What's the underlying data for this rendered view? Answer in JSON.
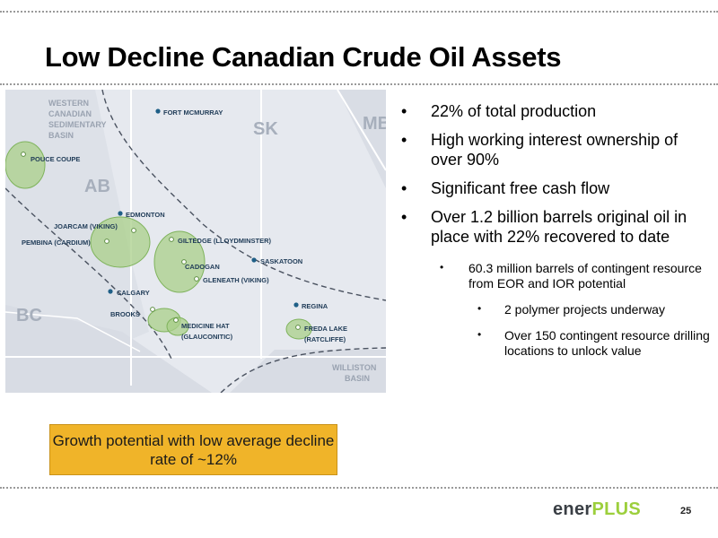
{
  "slide": {
    "title": "Low Decline Canadian Crude Oil Assets",
    "page_number": "25"
  },
  "map": {
    "basin_label": [
      "WESTERN",
      "CANADIAN",
      "SEDIMENTARY",
      "BASIN"
    ],
    "provinces": {
      "ab": "AB",
      "sk": "SK",
      "mb": "MB",
      "bc": "BC"
    },
    "cities": {
      "fort_mcmurray": "FORT MCMURRAY",
      "edmonton": "EDMONTON",
      "saskatoon": "SASKATOON",
      "calgary": "CALGARY",
      "regina": "REGINA"
    },
    "assets": {
      "pouce_coupe": "POUCE COUPE",
      "joarcam": "JOARCAM (VIKING)",
      "pembina": "PEMBINA (CARDIUM)",
      "giltedge": "GILTEDGE (LLOYDMINSTER)",
      "cadogan": "CADOGAN",
      "gleneath": "GLENEATH (VIKING)",
      "brooks": "BROOKS",
      "medicine_hat_1": "MEDICINE HAT",
      "medicine_hat_2": "(GLAUCONITIC)",
      "freda_lake_1": "FREDA LAKE",
      "freda_lake_2": "(RATCLIFFE)"
    },
    "williston": [
      "WILLISTON",
      "BASIN"
    ],
    "colors": {
      "asset_fill": "#a9cf8a",
      "asset_stroke": "#7fb35c",
      "city_pin": "#1f5f87",
      "background": "#e5e8ee"
    }
  },
  "bullets": {
    "b1": "22% of total production",
    "b2": "High working interest ownership of over 90%",
    "b3": "Significant free cash flow",
    "b4": "Over 1.2 billion barrels original oil in place with 22% recovered to date",
    "sub1": "60.3 million barrels of contingent resource from EOR and IOR potential",
    "subsub1": "2 polymer projects underway",
    "subsub2": "Over 150 contingent resource drilling locations to unlock value"
  },
  "callout": {
    "text": "Growth potential with low average decline rate of ~12%"
  },
  "logo": {
    "part1": "ener",
    "part2": "PLUS"
  }
}
